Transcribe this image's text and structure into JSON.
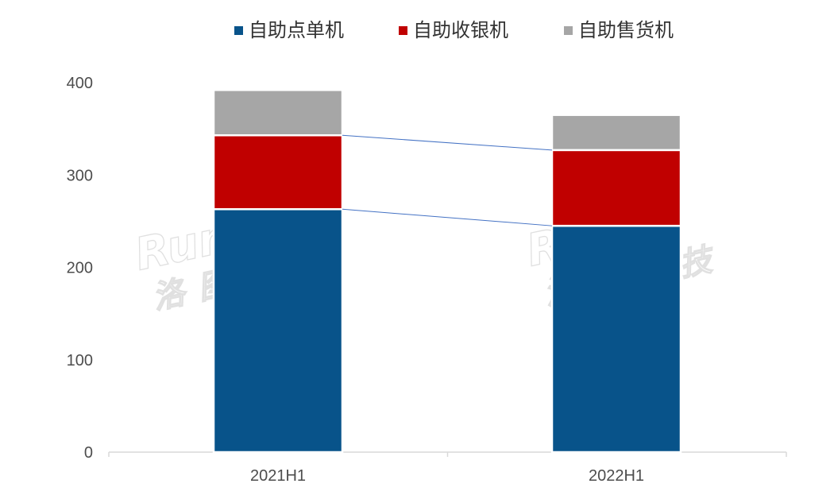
{
  "watermark": {
    "logo_en": "Runto",
    "logo_cn": "洛图科技"
  },
  "chart_data": {
    "type": "bar",
    "stacked": true,
    "categories": [
      "2021H1",
      "2022H1"
    ],
    "series": [
      {
        "name": "自助点单机",
        "values": [
          263,
          245
        ],
        "color": "#08538a"
      },
      {
        "name": "自助收银机",
        "values": [
          80,
          82
        ],
        "color": "#c00000"
      },
      {
        "name": "自助售货机",
        "values": [
          49,
          38
        ],
        "color": "#a6a6a6"
      }
    ],
    "ylim": [
      0,
      400
    ],
    "yticks": [
      0,
      100,
      200,
      300,
      400
    ],
    "xlabel": "",
    "ylabel": "",
    "grid": false,
    "legend_position": "top",
    "connector_lines": true
  }
}
